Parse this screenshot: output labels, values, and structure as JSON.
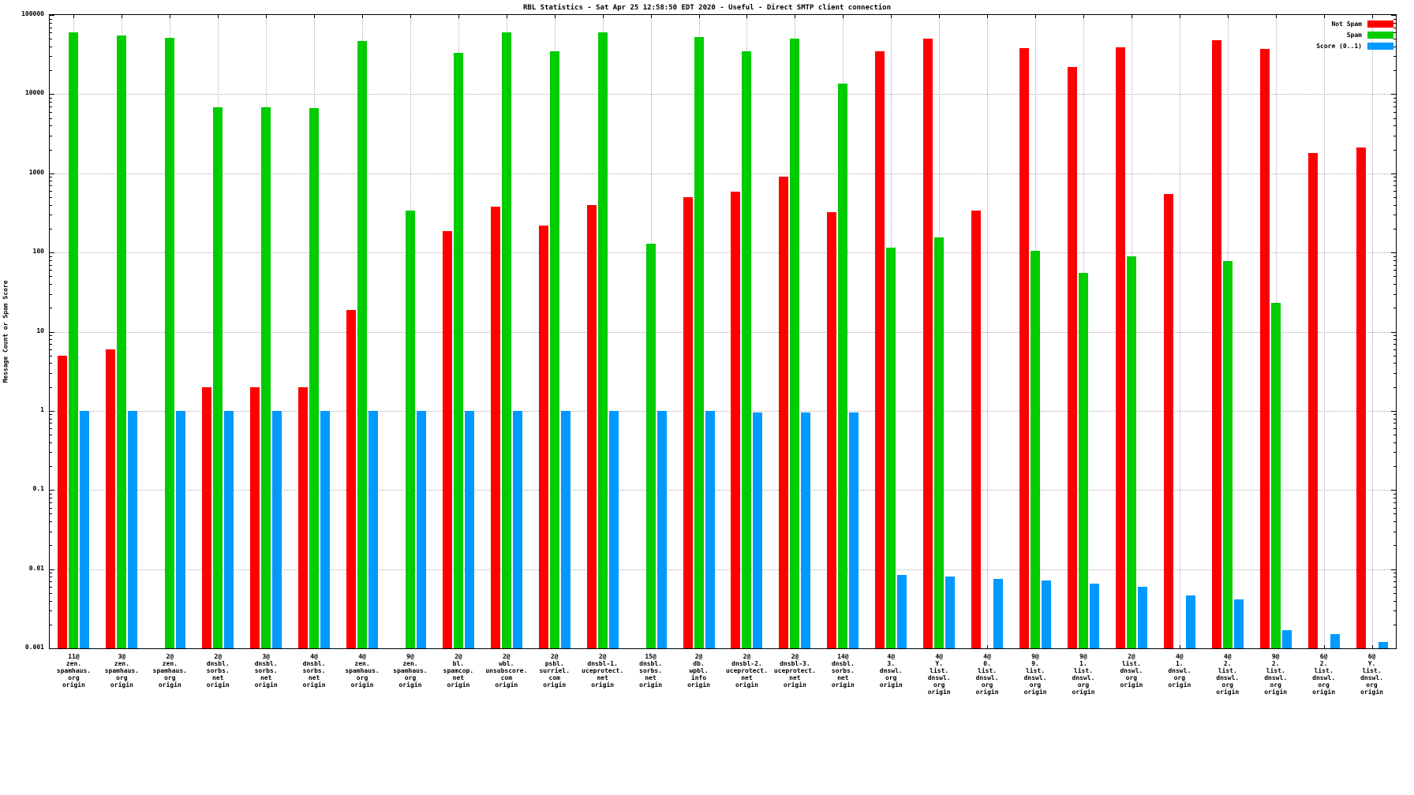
{
  "chart_data": {
    "type": "bar",
    "title": "RBL Statistics - Sat Apr 25 12:58:50 EDT 2020 - Useful - Direct SMTP client connection",
    "xlabel": "",
    "ylabel": "Message Count or Spam Score",
    "yscale": "log",
    "ylim": [
      0.001,
      100000
    ],
    "yticks": [
      "100000",
      "10000",
      "1000",
      "100",
      "10",
      "1",
      "0.1",
      "0.01",
      "0.001"
    ],
    "grid": true,
    "legend_position": "top-right",
    "categories": [
      [
        "11@",
        "zen.",
        "spamhaus.",
        "org",
        "origin"
      ],
      [
        "3@",
        "zen.",
        "spamhaus.",
        "org",
        "origin"
      ],
      [
        "2@",
        "zen.",
        "spamhaus.",
        "org",
        "origin"
      ],
      [
        "2@",
        "dnsbl.",
        "sorbs.",
        "net",
        "origin"
      ],
      [
        "3@",
        "dnsbl.",
        "sorbs.",
        "net",
        "origin"
      ],
      [
        "4@",
        "dnsbl.",
        "sorbs.",
        "net",
        "origin"
      ],
      [
        "4@",
        "zen.",
        "spamhaus.",
        "org",
        "origin"
      ],
      [
        "9@",
        "zen.",
        "spamhaus.",
        "org",
        "origin"
      ],
      [
        "2@",
        "bl.",
        "spamcop.",
        "net",
        "origin"
      ],
      [
        "2@",
        "wbl.",
        "unsubscore.",
        "com",
        "origin"
      ],
      [
        "2@",
        "psbl.",
        "surriel.",
        "com",
        "origin"
      ],
      [
        "2@",
        "dnsbl-1.",
        "uceprotect.",
        "net",
        "origin"
      ],
      [
        "15@",
        "dnsbl.",
        "sorbs.",
        "net",
        "origin"
      ],
      [
        "2@",
        "db.",
        "wpbl.",
        "info",
        "origin"
      ],
      [
        "2@",
        "dnsbl-2.",
        "uceprotect.",
        "net",
        "origin"
      ],
      [
        "2@",
        "dnsbl-3.",
        "uceprotect.",
        "net",
        "origin"
      ],
      [
        "14@",
        "dnsbl.",
        "sorbs.",
        "net",
        "origin"
      ],
      [
        "4@",
        "3.",
        "dnswl.",
        "org",
        "origin"
      ],
      [
        "4@",
        "Y.",
        "list.",
        "dnswl.",
        "org",
        "origin"
      ],
      [
        "4@",
        "0.",
        "list.",
        "dnswl.",
        "org",
        "origin"
      ],
      [
        "9@",
        "9.",
        "list.",
        "dnswl.",
        "org",
        "origin"
      ],
      [
        "9@",
        "1.",
        "list.",
        "dnswl.",
        "org",
        "origin"
      ],
      [
        "2@",
        "list.",
        "dnswl.",
        "org",
        "origin"
      ],
      [
        "4@",
        "1.",
        "dnswl.",
        "org",
        "origin"
      ],
      [
        "4@",
        "2.",
        "list.",
        "dnswl.",
        "org",
        "origin"
      ],
      [
        "9@",
        "2.",
        "list.",
        "dnswl.",
        "org",
        "origin"
      ],
      [
        "6@",
        "2.",
        "list.",
        "dnswl.",
        "org",
        "origin"
      ],
      [
        "6@",
        "Y.",
        "list.",
        "dnswl.",
        "org",
        "origin"
      ]
    ],
    "series": [
      {
        "name": "Not Spam",
        "color": "#ff0000",
        "values": [
          5,
          6,
          0,
          2,
          2,
          2,
          19,
          0,
          185,
          380,
          220,
          400,
          0,
          500,
          580,
          900,
          320,
          35000,
          50000,
          340,
          38000,
          22000,
          39000,
          550,
          48000,
          37000,
          1800,
          2100
        ]
      },
      {
        "name": "Spam",
        "color": "#00cc00",
        "values": [
          60000,
          55000,
          52000,
          6800,
          6800,
          6700,
          47000,
          340,
          33000,
          60000,
          35000,
          60000,
          130,
          53000,
          35000,
          50000,
          13500,
          115,
          155,
          0,
          105,
          55,
          90,
          0,
          78,
          23,
          0,
          0
        ]
      },
      {
        "name": "Score (0..1)",
        "color": "#0099ff",
        "values": [
          1.0,
          1.0,
          1.0,
          1.0,
          1.0,
          1.0,
          1.0,
          1.0,
          1.0,
          1.0,
          1.0,
          1.0,
          1.0,
          1.0,
          0.95,
          0.95,
          0.95,
          0.0085,
          0.008,
          0.0075,
          0.0072,
          0.0065,
          0.006,
          0.0046,
          0.0041,
          0.0017,
          0.0015,
          0.0012
        ]
      }
    ]
  },
  "colors": {
    "background": "#ffffff",
    "axis": "#000000",
    "grid": "#aaaaaa",
    "not_spam": "#ff0000",
    "spam": "#00cc00",
    "score": "#0099ff"
  }
}
